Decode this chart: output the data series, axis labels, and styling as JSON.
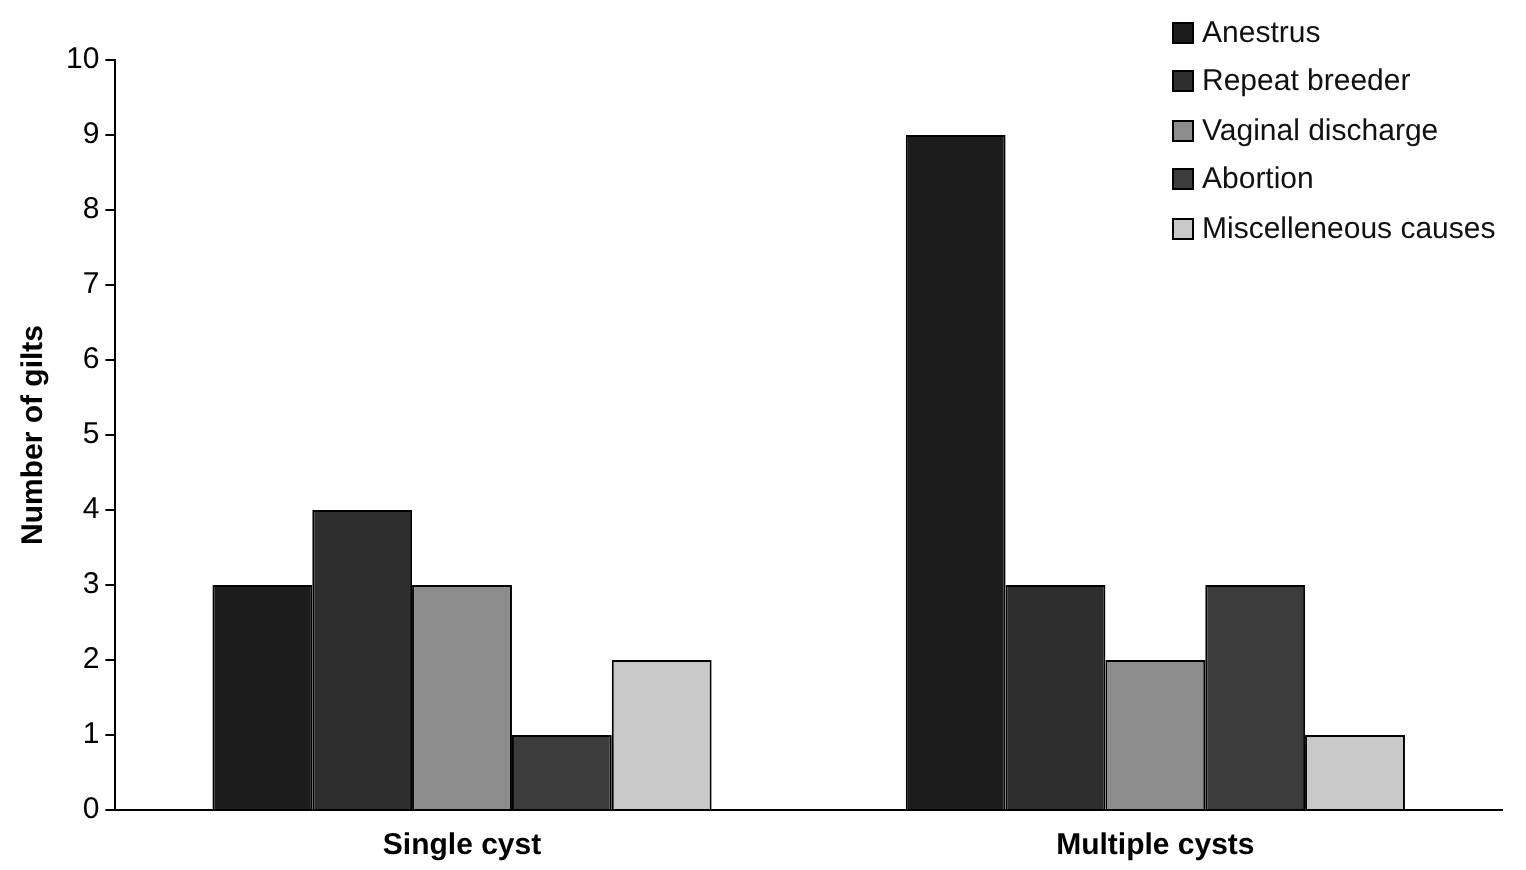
{
  "chart_data": {
    "type": "bar",
    "ylabel": "Number of gilts",
    "categories": [
      "Single cyst",
      "Multiple cysts"
    ],
    "series": [
      {
        "name": "Anestrus",
        "color": "#1c1c1c",
        "values": [
          3,
          9
        ]
      },
      {
        "name": "Repeat breeder",
        "color": "#2e2e2e",
        "values": [
          4,
          3
        ]
      },
      {
        "name": "Vaginal discharge",
        "color": "#8c8c8c",
        "values": [
          3,
          2
        ]
      },
      {
        "name": "Abortion",
        "color": "#3c3c3c",
        "values": [
          1,
          3
        ]
      },
      {
        "name": "Miscelleneous causes",
        "color": "#c8c8c8",
        "values": [
          2,
          1
        ]
      }
    ],
    "ylim": [
      0,
      10
    ],
    "yticks": [
      0,
      1,
      2,
      3,
      4,
      5,
      6,
      7,
      8,
      9,
      10
    ],
    "grid": false,
    "legend": "top right"
  }
}
